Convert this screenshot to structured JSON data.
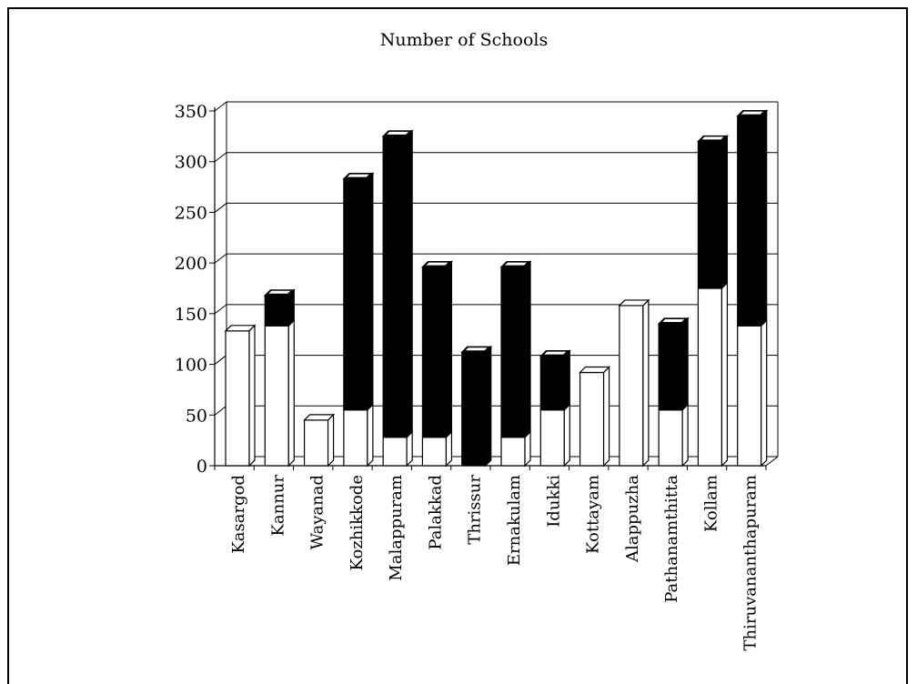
{
  "chart_data": {
    "type": "bar",
    "title": "Number of Schools",
    "xlabel": "",
    "ylabel": "",
    "ylim": [
      0,
      350
    ],
    "yticks": [
      0,
      50,
      100,
      150,
      200,
      250,
      300,
      350
    ],
    "grid": true,
    "stacked": true,
    "categories": [
      "Kasargod",
      "Kannur",
      "Wayanad",
      "Kozhikkode",
      "Malappuram",
      "Palakkad",
      "Thrissur",
      "Ernakulam",
      "Idukki",
      "Kottayam",
      "Alappuzha",
      "Pathanamthitta",
      "Kollam",
      "Thiruvananthapuram"
    ],
    "series": [
      {
        "color": "#ffffff",
        "values": [
          133,
          138,
          45,
          55,
          28,
          28,
          0,
          28,
          55,
          92,
          158,
          55,
          175,
          138
        ]
      },
      {
        "color": "#000000",
        "values": [
          0,
          30,
          0,
          228,
          297,
          168,
          112,
          168,
          53,
          0,
          0,
          85,
          145,
          207
        ]
      }
    ]
  }
}
